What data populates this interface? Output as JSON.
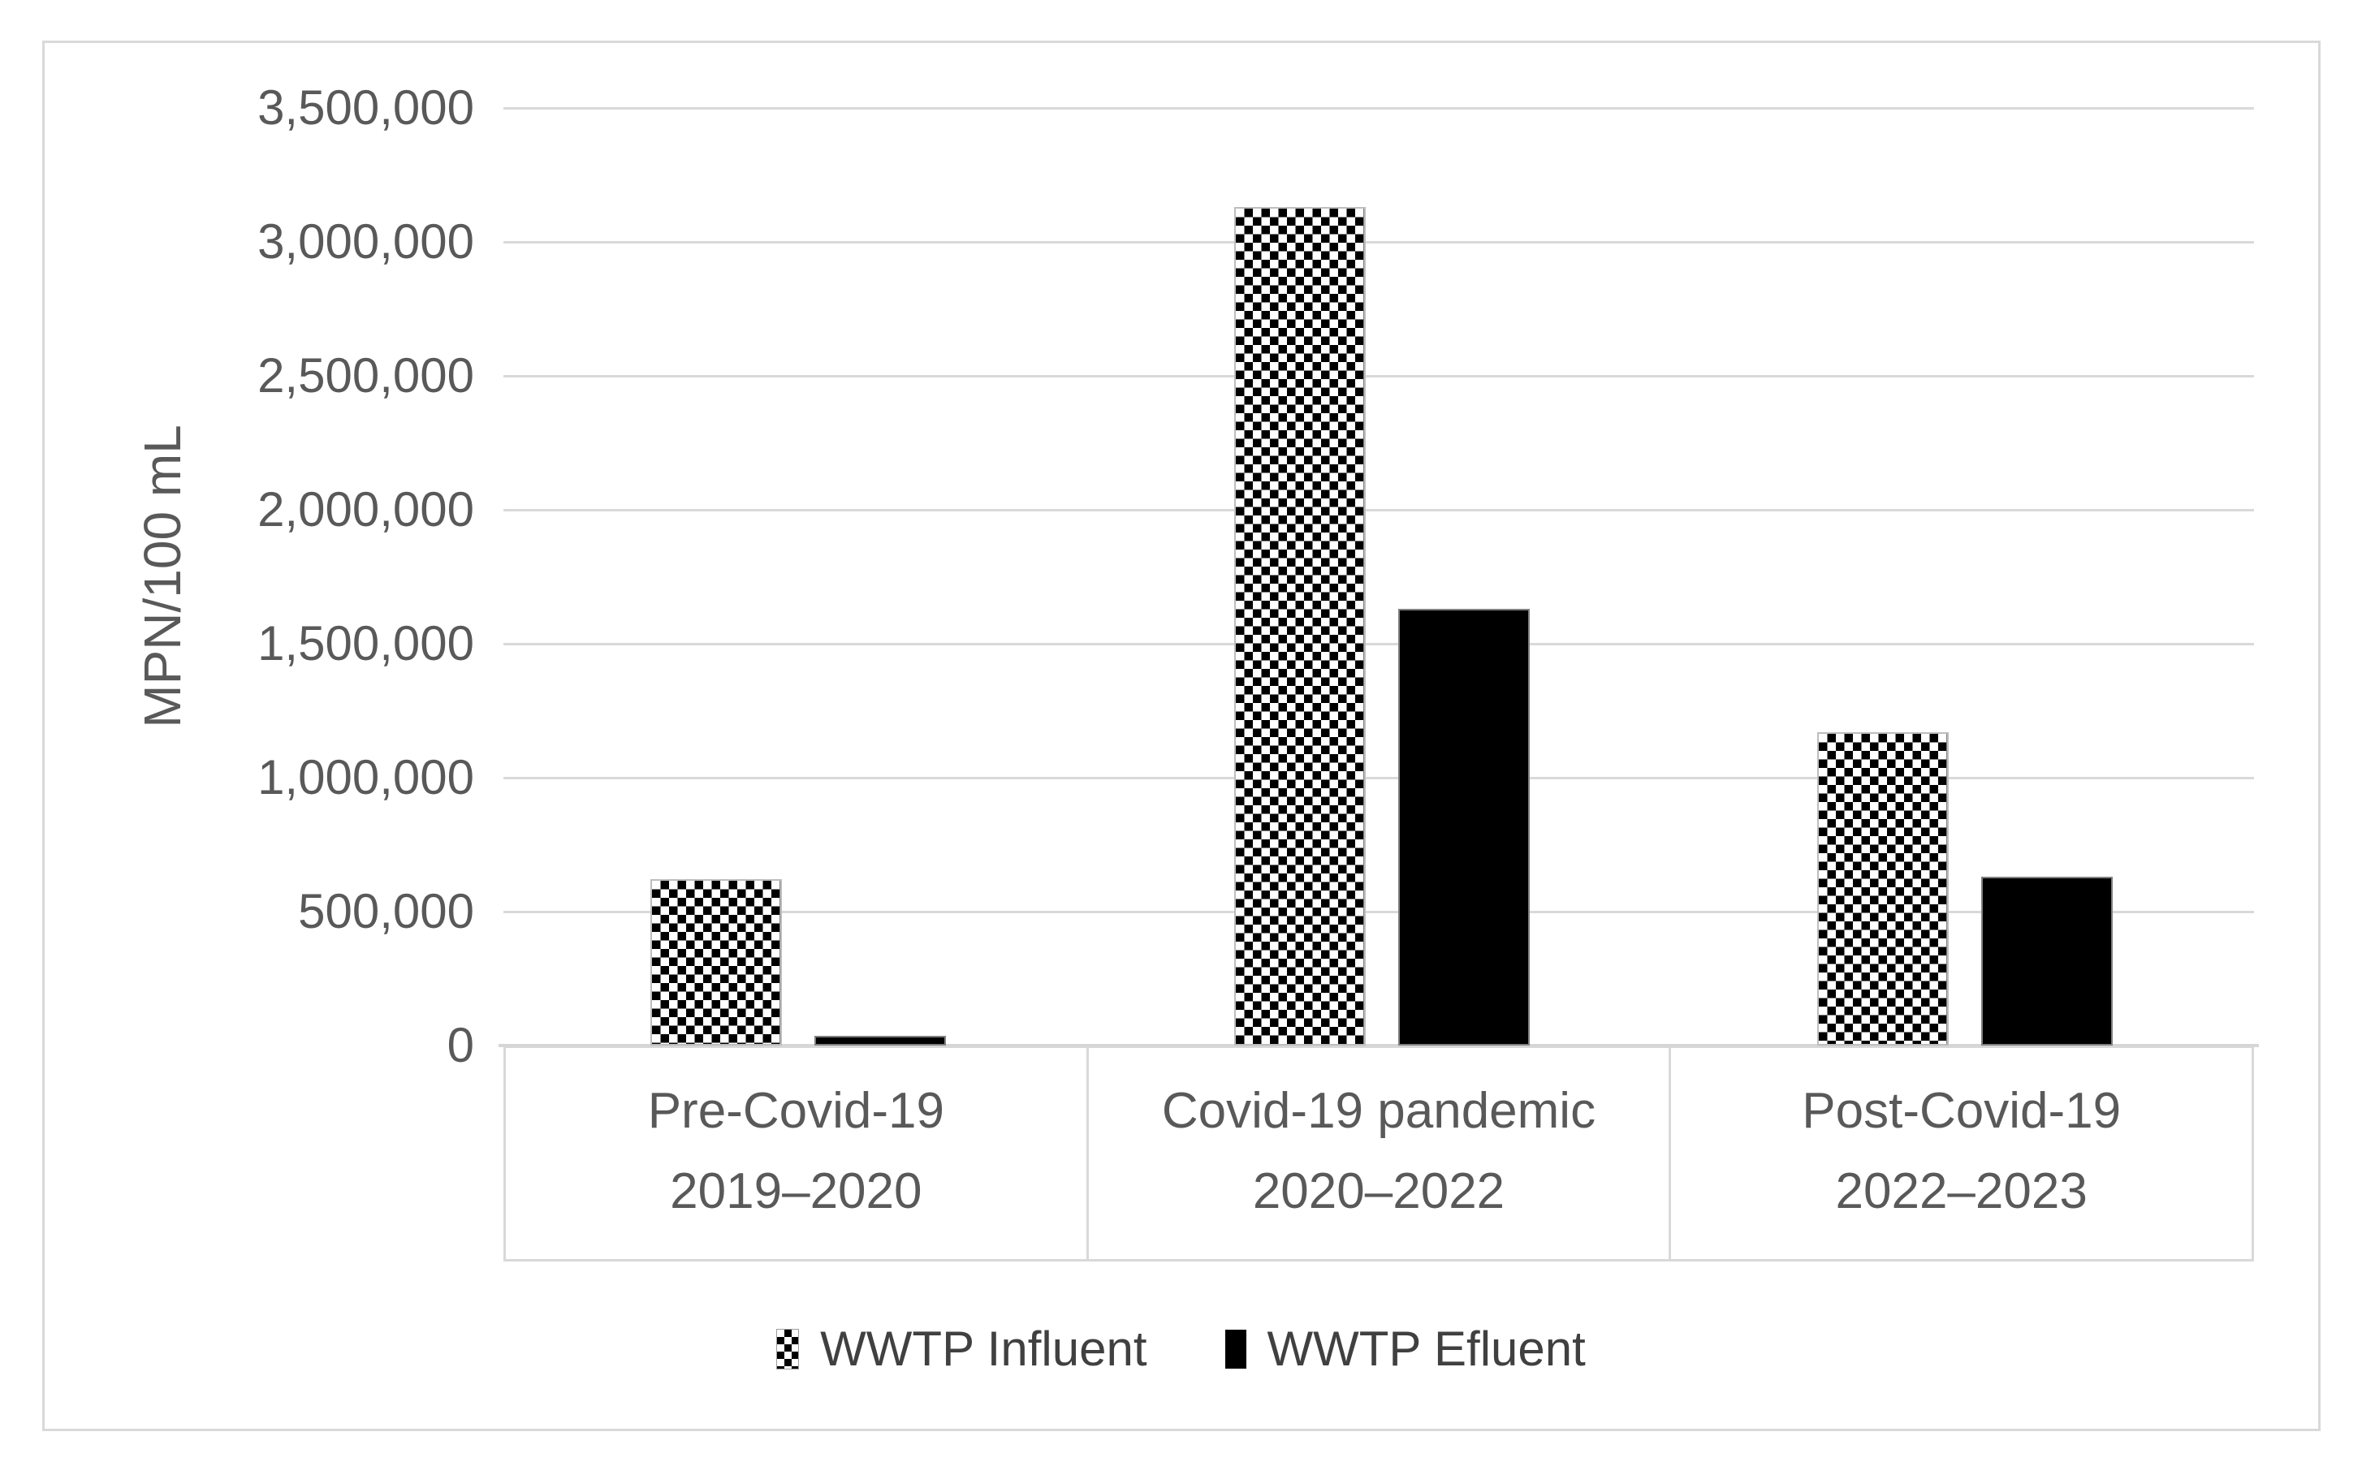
{
  "chart_data": {
    "type": "bar",
    "title": "",
    "ylabel": "MPN/100 mL",
    "xlabel": "",
    "categories": [
      "Pre-Covid-19",
      "Covid-19 pandemic",
      "Post-Covid-19"
    ],
    "category_sublabels": [
      "2019–2020",
      "2020–2022",
      "2022–2023"
    ],
    "series": [
      {
        "name": "WWTP Influent",
        "fill": "checkerboard-pattern",
        "colors": [
          "#000000",
          "#ffffff"
        ],
        "values": [
          620000,
          3130000,
          1170000
        ]
      },
      {
        "name": "WWTP Efluent",
        "fill": "solid",
        "color": "#000000",
        "values": [
          35000,
          1630000,
          630000
        ]
      }
    ],
    "ylim": [
      0,
      3500000
    ],
    "ytick_interval": 500000,
    "ytick_labels": [
      "0",
      "500,000",
      "1,000,000",
      "1,500,000",
      "2,000,000",
      "2,500,000",
      "3,000,000",
      "3,500,000"
    ],
    "grid": true,
    "legend_position": "bottom",
    "gridline_color": "#d9d9d9",
    "axis_text_color": "#595959"
  },
  "legend": {
    "influent_label": "WWTP Influent",
    "efluent_label": "WWTP Efluent"
  }
}
